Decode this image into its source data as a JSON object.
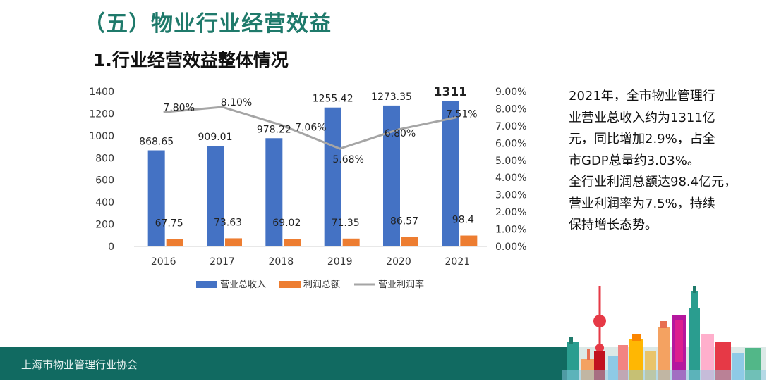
{
  "header": {
    "title": "（五）物业行业经营效益",
    "subtitle": "1.行业经营效益整体情况"
  },
  "description": [
    "2021年，全市物业管理行",
    "业营业总收入约为1311亿",
    "元，同比增加2.9%，占全",
    "市GDP总量约3.03%。",
    "全行业利润总额达98.4亿元，",
    "营业利润率为7.5%，持续",
    "保持增长态势。"
  ],
  "footer": {
    "org_name": "上海市物业管理行业协会"
  },
  "colors": {
    "revenue": "#4472c4",
    "profit": "#ed7d31",
    "rate": "#a5a5a5",
    "brand": "#116a61"
  },
  "chart_data": {
    "type": "bar",
    "categories": [
      "2016",
      "2017",
      "2018",
      "2019",
      "2020",
      "2021"
    ],
    "series": [
      {
        "name": "营业总收入",
        "type": "bar",
        "axis": "left",
        "values": [
          868.65,
          909.01,
          978.22,
          1255.42,
          1273.35,
          1311
        ],
        "labels": [
          "868.65",
          "909.01",
          "978.22",
          "1255.42",
          "1273.35",
          "1311"
        ]
      },
      {
        "name": "利润总额",
        "type": "bar",
        "axis": "left",
        "values": [
          67.75,
          73.63,
          69.02,
          71.35,
          86.57,
          98.4
        ],
        "labels": [
          "67.75",
          "73.63",
          "69.02",
          "71.35",
          "86.57",
          "98.4"
        ]
      },
      {
        "name": "营业利润率",
        "type": "line",
        "axis": "right",
        "values": [
          7.8,
          8.1,
          7.06,
          5.68,
          6.8,
          7.51
        ],
        "labels": [
          "7.80%",
          "8.10%",
          "7.06%",
          "5.68%",
          "6.80%",
          "7.51%"
        ]
      }
    ],
    "y_left": {
      "min": 0,
      "max": 1400,
      "ticks": [
        "0",
        "200",
        "400",
        "600",
        "800",
        "1000",
        "1200",
        "1400"
      ]
    },
    "y_right": {
      "min": 0,
      "max": 9,
      "ticks": [
        "0.00%",
        "1.00%",
        "2.00%",
        "3.00%",
        "4.00%",
        "5.00%",
        "6.00%",
        "7.00%",
        "8.00%",
        "9.00%"
      ]
    },
    "grid": false,
    "legend_position": "bottom"
  }
}
